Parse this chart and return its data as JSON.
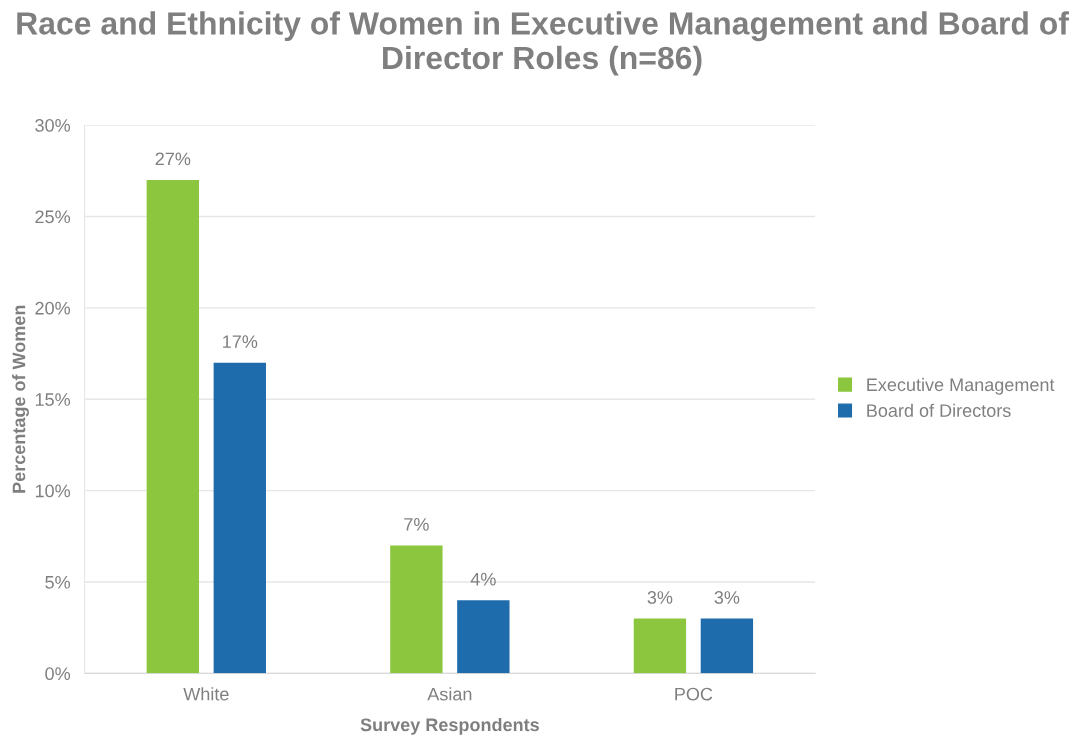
{
  "chart_data": {
    "type": "bar",
    "title": "Race and Ethnicity of Women in Executive Management and Board of Director Roles (n=86)",
    "xlabel": "Survey Respondents",
    "ylabel": "Percentage of Women",
    "categories": [
      "White",
      "Asian",
      "POC"
    ],
    "series": [
      {
        "name": "Executive Management",
        "color": "#8cc63e",
        "values": [
          27,
          7,
          3
        ],
        "value_labels": [
          "27%",
          "7%",
          "3%"
        ]
      },
      {
        "name": "Board of Directors",
        "color": "#1f6cad",
        "values": [
          17,
          4,
          3
        ],
        "value_labels": [
          "17%",
          "4%",
          "3%"
        ]
      }
    ],
    "ylim": [
      0,
      30
    ],
    "yticks": [
      {
        "value": 0,
        "label": "0%"
      },
      {
        "value": 5,
        "label": "5%"
      },
      {
        "value": 10,
        "label": "10%"
      },
      {
        "value": 15,
        "label": "15%"
      },
      {
        "value": 20,
        "label": "20%"
      },
      {
        "value": 25,
        "label": "25%"
      },
      {
        "value": 30,
        "label": "30%"
      }
    ],
    "grid": "y",
    "legend": "right"
  }
}
